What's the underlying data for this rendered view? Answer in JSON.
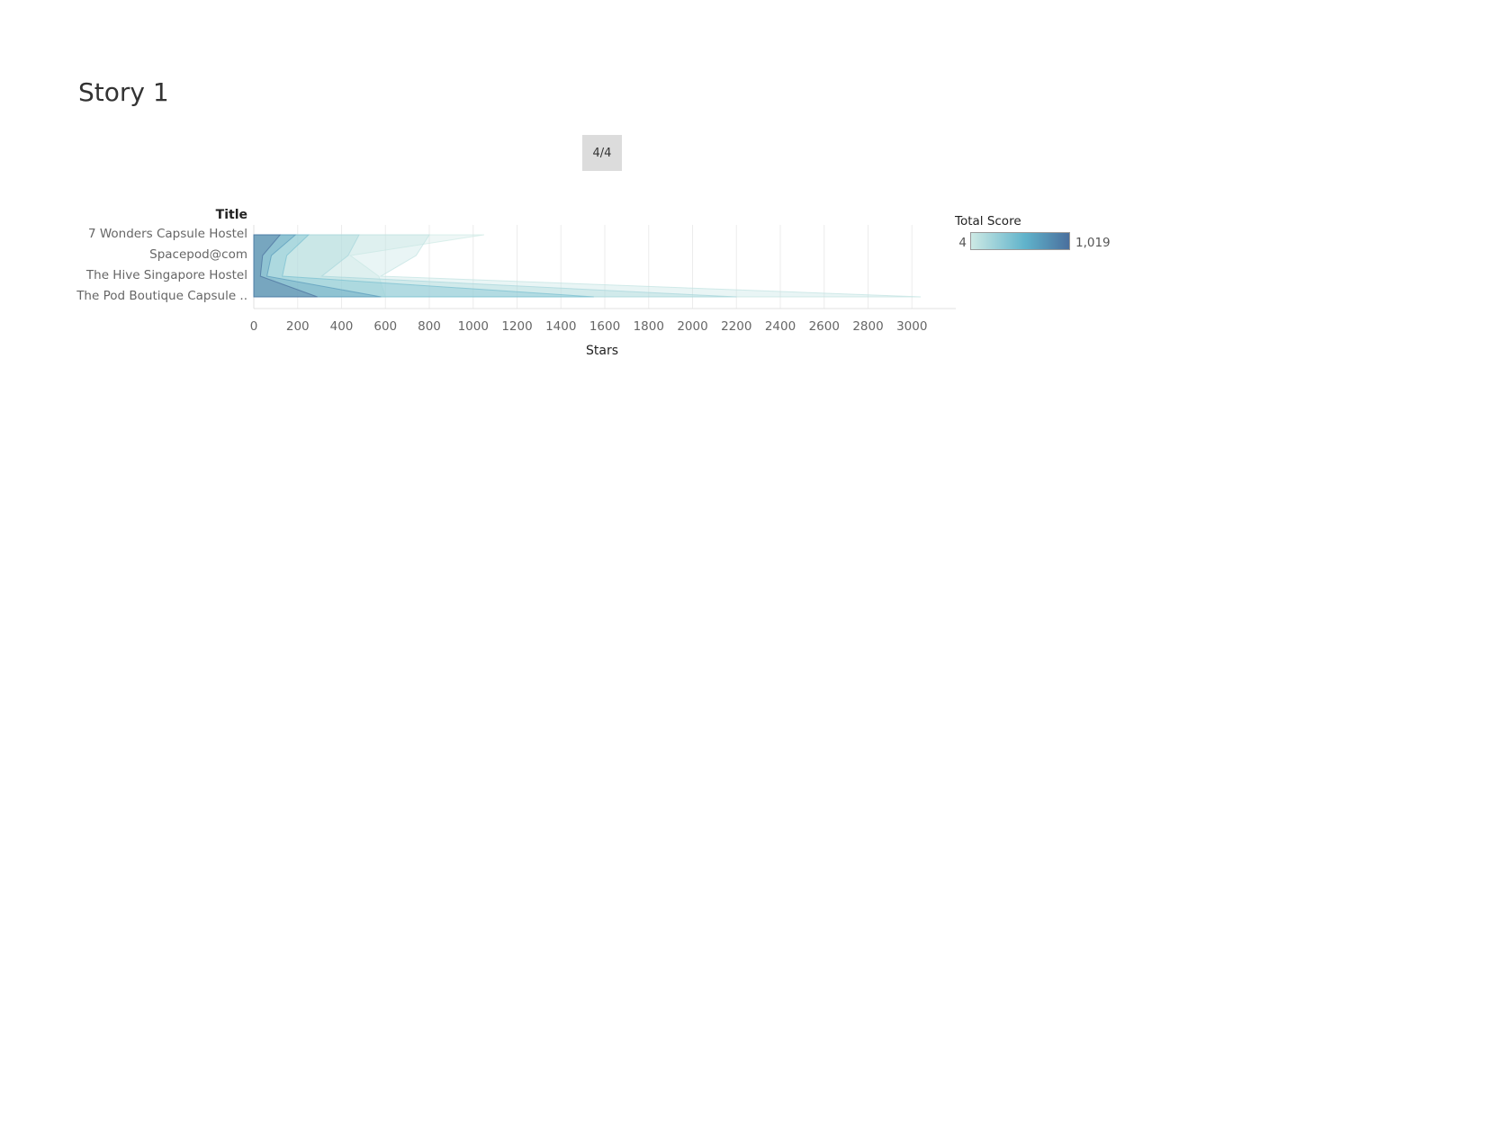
{
  "story": {
    "title": "Story 1",
    "nav_label": "4/4"
  },
  "chart_data": {
    "type": "area",
    "orientation": "horizontal",
    "row_header": "Title",
    "categories": [
      "7 Wonders Capsule Hostel",
      "Spacepod@com",
      "The Hive Singapore Hostel",
      "The Pod Boutique Capsule .."
    ],
    "xlabel": "Stars",
    "xlim": [
      0,
      3200
    ],
    "x_ticks": [
      0,
      200,
      400,
      600,
      800,
      1000,
      1200,
      1400,
      1600,
      1800,
      2000,
      2200,
      2400,
      2600,
      2800,
      3000
    ],
    "grid": true,
    "legend": {
      "title": "Total Score",
      "min_label": "4",
      "max_label": "1,019",
      "placement": "top-right"
    },
    "colors": {
      "low": "#cde9e4",
      "mid": "#60b3cb",
      "high": "#4a6f9d"
    },
    "series": [
      {
        "score": 4,
        "values": [
          1050,
          440,
          570,
          600
        ]
      },
      {
        "score": 60,
        "values": [
          800,
          740,
          580,
          3040
        ]
      },
      {
        "score": 180,
        "values": [
          480,
          430,
          310,
          2200
        ]
      },
      {
        "score": 400,
        "values": [
          250,
          150,
          130,
          1550
        ]
      },
      {
        "score": 700,
        "values": [
          190,
          80,
          60,
          580
        ]
      },
      {
        "score": 1019,
        "values": [
          120,
          40,
          30,
          290
        ]
      }
    ]
  }
}
